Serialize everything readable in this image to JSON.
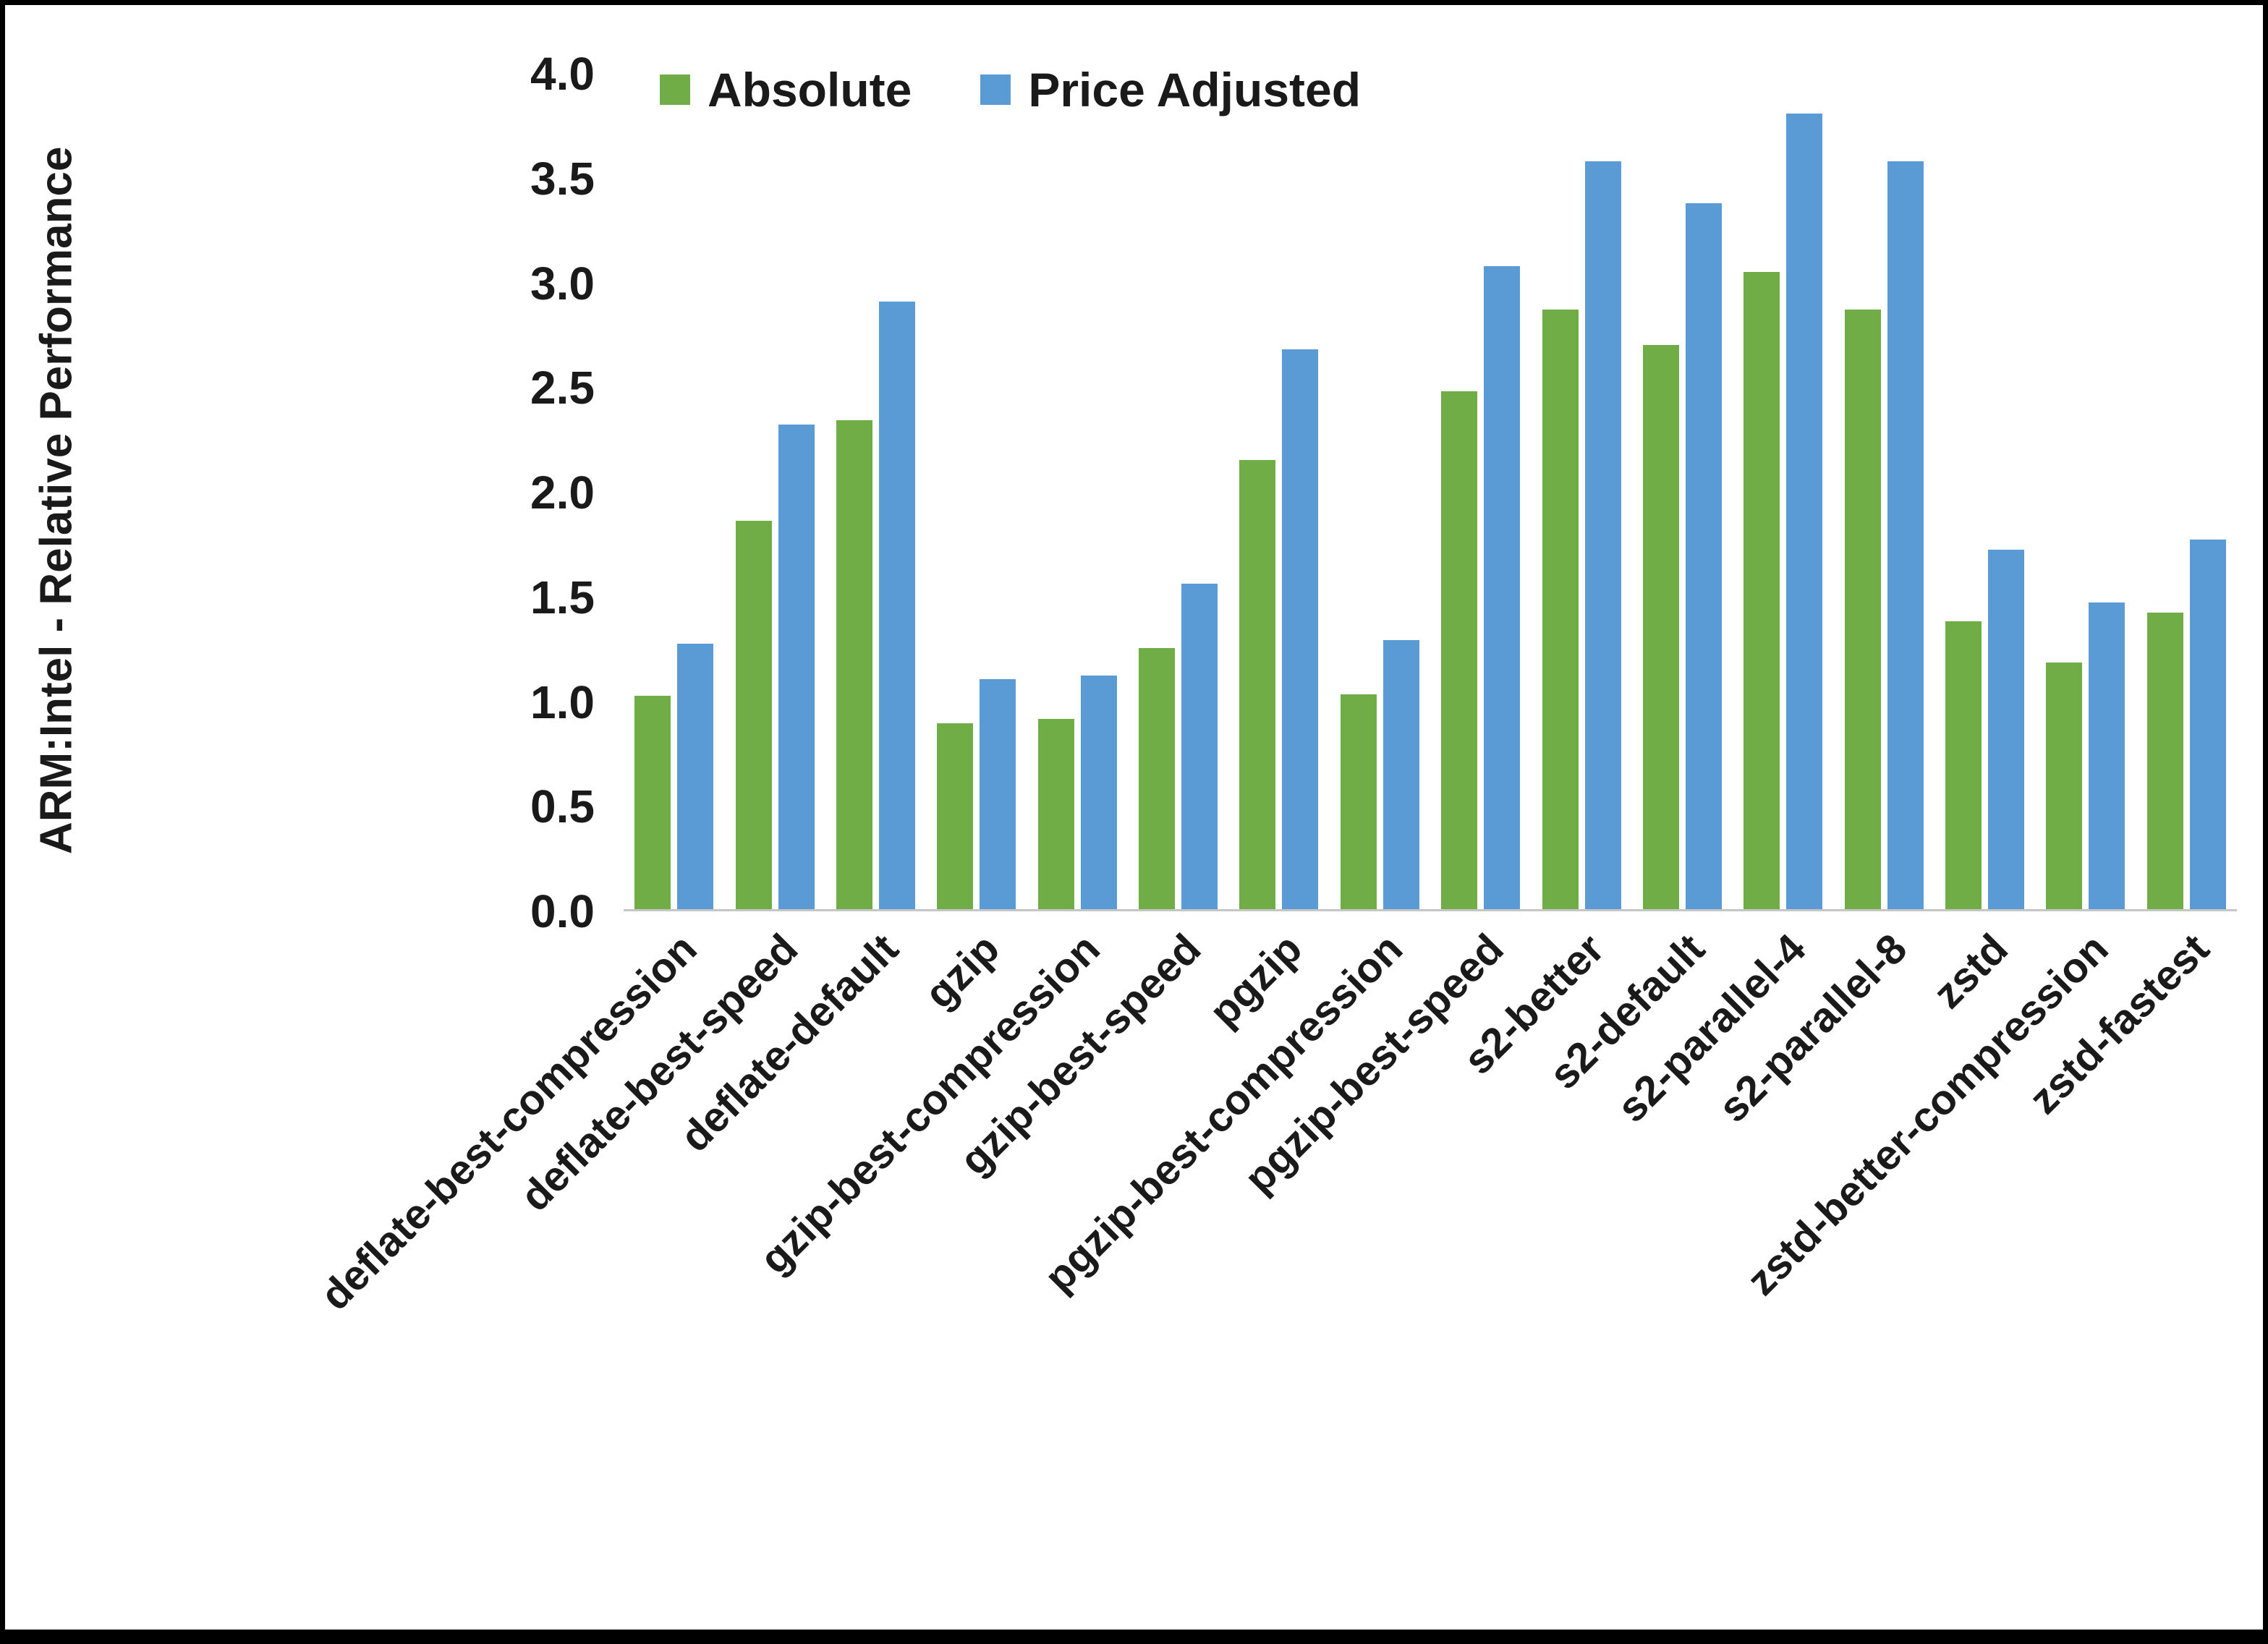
{
  "window": {
    "background": "#ffffff",
    "border_color": "#000000"
  },
  "chart_data": {
    "type": "bar",
    "title": "",
    "xlabel": "",
    "ylabel": "ARM:Intel - Relative Performance",
    "ylim": [
      0,
      4.0
    ],
    "ytick_step": 0.5,
    "yticks": [
      "0.0",
      "0.5",
      "1.0",
      "1.5",
      "2.0",
      "2.5",
      "3.0",
      "3.5",
      "4.0"
    ],
    "grid": false,
    "legend_position": "top-inside-left",
    "categories": [
      "deflate-best-compression",
      "deflate-best-speed",
      "deflate-default",
      "gzip",
      "gzip-best-compression",
      "gzip-best-speed",
      "pgzip",
      "pgzip-best-compression",
      "pgzip-best-speed",
      "s2-better",
      "s2-default",
      "s2-parallel-4",
      "s2-parallel-8",
      "zstd",
      "zstd-better-compression",
      "zstd-fastest"
    ],
    "series": [
      {
        "name": "Absolute",
        "color": "#70AD47",
        "values": [
          1.02,
          1.86,
          2.34,
          0.89,
          0.91,
          1.25,
          2.15,
          1.03,
          2.48,
          2.87,
          2.7,
          3.05,
          2.87,
          1.38,
          1.18,
          1.42
        ]
      },
      {
        "name": "Price Adjusted",
        "color": "#5B9BD5",
        "values": [
          1.27,
          2.32,
          2.91,
          1.1,
          1.12,
          1.56,
          2.68,
          1.29,
          3.08,
          3.58,
          3.38,
          3.81,
          3.58,
          1.72,
          1.47,
          1.77
        ]
      }
    ]
  }
}
